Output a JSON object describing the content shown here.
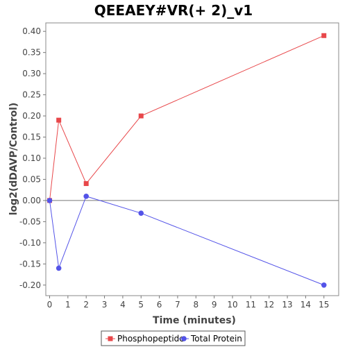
{
  "chart_data": {
    "type": "line",
    "title": "QEEAEY#VR(+ 2)_v1",
    "xlabel": "Time (minutes)",
    "ylabel": "log2(dDAVP/Control)",
    "xlim": [
      0,
      15.6
    ],
    "ylim": [
      -0.225,
      0.42
    ],
    "x_ticks": [
      0,
      1,
      2,
      3,
      4,
      5,
      6,
      7,
      8,
      9,
      10,
      11,
      12,
      13,
      14,
      15
    ],
    "x_tick_labels": [
      "0",
      "1",
      "2",
      "3",
      "4",
      "5",
      "6",
      "7",
      "8",
      "9",
      "10",
      "11",
      "12",
      "13",
      "14",
      "15"
    ],
    "y_ticks": [
      -0.2,
      -0.15,
      -0.1,
      -0.05,
      0.0,
      0.05,
      0.1,
      0.15,
      0.2,
      0.25,
      0.3,
      0.35,
      0.4
    ],
    "y_tick_labels": [
      "-0.20",
      "-0.15",
      "-0.10",
      "-0.05",
      "0.00",
      "0.05",
      "0.10",
      "0.15",
      "0.20",
      "0.25",
      "0.30",
      "0.35",
      "0.40"
    ],
    "grid": false,
    "zero_line": true,
    "legend_position": "bottom",
    "series": [
      {
        "name": "Phosphopeptide",
        "color": "#e8474a",
        "marker": "square",
        "x": [
          0,
          0.5,
          2,
          5,
          15
        ],
        "y": [
          0.0,
          0.19,
          0.04,
          0.2,
          0.39
        ]
      },
      {
        "name": "Total Protein",
        "color": "#5353e8",
        "marker": "circle",
        "x": [
          0,
          0.5,
          2,
          5,
          15
        ],
        "y": [
          0.0,
          -0.16,
          0.01,
          -0.03,
          -0.2
        ]
      }
    ]
  }
}
